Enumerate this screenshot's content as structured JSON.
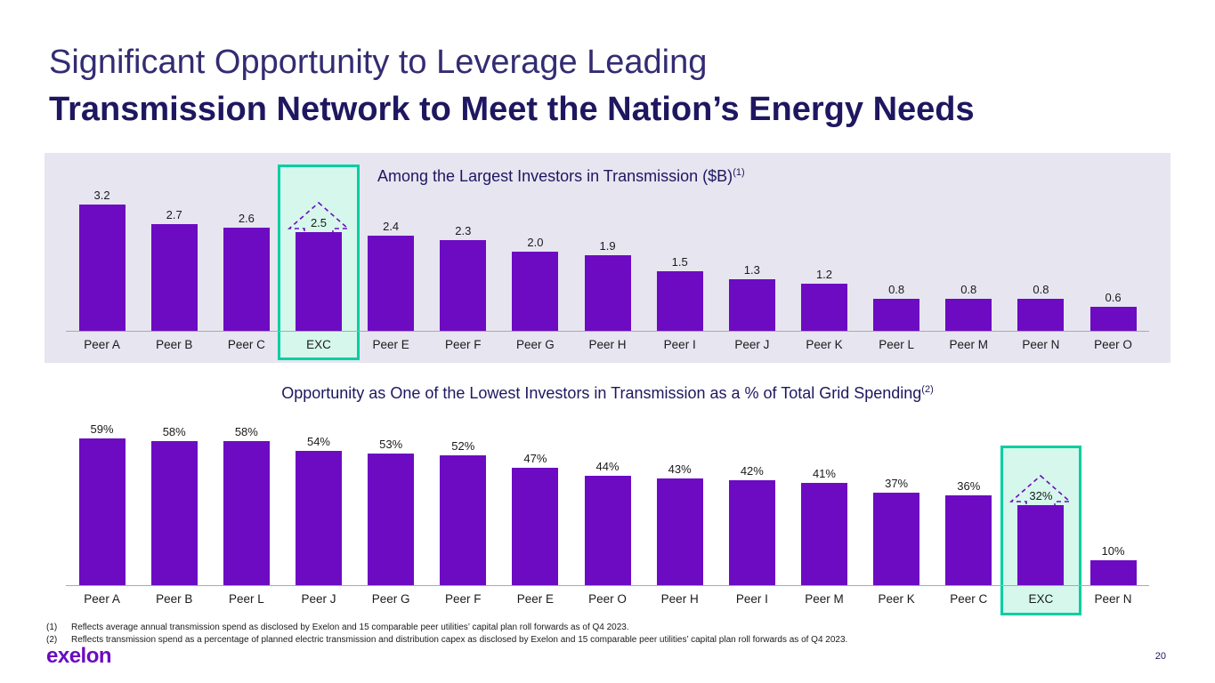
{
  "slide": {
    "title_line1": "Significant Opportunity to Leverage Leading",
    "title_line2": "Transmission Network to Meet the Nation’s Energy Needs",
    "footnotes": [
      {
        "num": "(1)",
        "text": "Reflects average annual transmission spend as disclosed by Exelon and 15 comparable peer utilities’ capital plan roll forwards as of Q4 2023."
      },
      {
        "num": "(2)",
        "text": "Reflects transmission spend as a percentage of planned electric transmission and distribution capex as disclosed by Exelon and 15 comparable peer utilities’ capital plan roll forwards as of Q4 2023."
      }
    ],
    "logo_text": "exelon",
    "page_number": "20"
  },
  "colors": {
    "bar": "#6C0BC2",
    "highlight_border": "#00CFA2",
    "highlight_fill": "#D6F7EC",
    "title_navy": "#1E1760",
    "title_navy_light": "#332C72"
  },
  "chart_data": [
    {
      "type": "bar",
      "title": "Among the Largest Investors in Transmission ($B)",
      "footnote_ref": "(1)",
      "unit": "$B",
      "ylim": [
        0,
        3.2
      ],
      "grid": false,
      "categories": [
        "Peer A",
        "Peer B",
        "Peer C",
        "EXC",
        "Peer E",
        "Peer F",
        "Peer G",
        "Peer H",
        "Peer I",
        "Peer J",
        "Peer K",
        "Peer L",
        "Peer M",
        "Peer N",
        "Peer O"
      ],
      "values": [
        3.2,
        2.7,
        2.6,
        2.5,
        2.4,
        2.3,
        2.0,
        1.9,
        1.5,
        1.3,
        1.2,
        0.8,
        0.8,
        0.8,
        0.6
      ],
      "value_labels": [
        "3.2",
        "2.7",
        "2.6",
        "2.5",
        "2.4",
        "2.3",
        "2.0",
        "1.9",
        "1.5",
        "1.3",
        "1.2",
        "0.8",
        "0.8",
        "0.8",
        "0.6"
      ],
      "highlight": "EXC",
      "highlight_style": "teal-box-with-dashed-up-arrow"
    },
    {
      "type": "bar",
      "title": "Opportunity as One of the Lowest Investors in Transmission as a % of Total Grid Spending",
      "footnote_ref": "(2)",
      "unit": "%",
      "ylim": [
        0,
        60
      ],
      "grid": false,
      "categories": [
        "Peer A",
        "Peer B",
        "Peer L",
        "Peer J",
        "Peer G",
        "Peer F",
        "Peer E",
        "Peer O",
        "Peer H",
        "Peer I",
        "Peer M",
        "Peer K",
        "Peer C",
        "EXC",
        "Peer N"
      ],
      "values": [
        59,
        58,
        58,
        54,
        53,
        52,
        47,
        44,
        43,
        42,
        41,
        37,
        36,
        32,
        10
      ],
      "value_labels": [
        "59%",
        "58%",
        "58%",
        "54%",
        "53%",
        "52%",
        "47%",
        "44%",
        "43%",
        "42%",
        "41%",
        "37%",
        "36%",
        "32%",
        "10%"
      ],
      "highlight": "EXC",
      "highlight_style": "teal-box-with-dashed-up-arrow"
    }
  ]
}
